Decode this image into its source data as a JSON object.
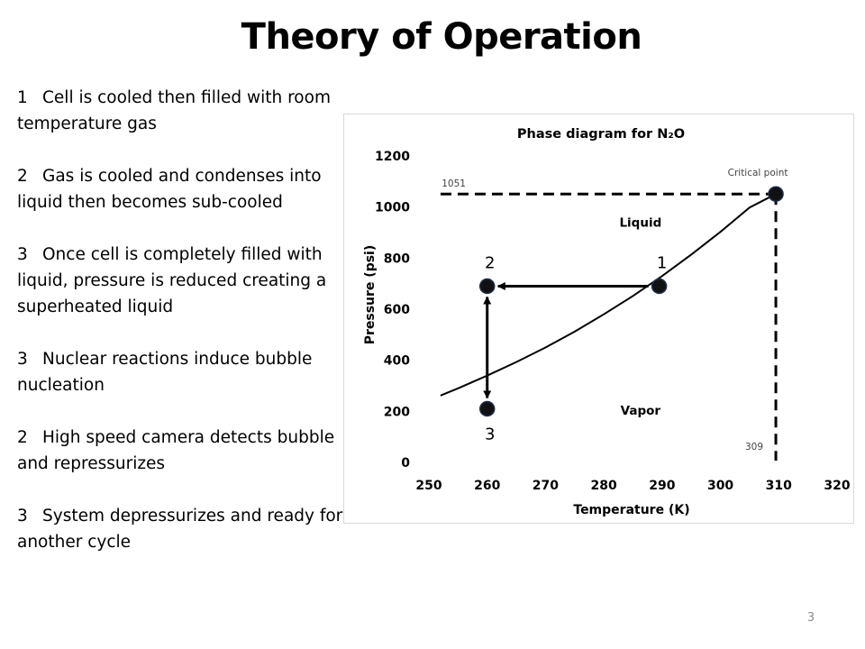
{
  "slide": {
    "title": "Theory of Operation",
    "page_number": "3",
    "steps": [
      {
        "num": "1",
        "text": "Cell is cooled then filled with room temperature gas"
      },
      {
        "num": "2",
        "text": "Gas is cooled and condenses into liquid then becomes sub-cooled"
      },
      {
        "num": "3",
        "text": "Once cell is completely filled with liquid, pressure is reduced creating   a superheated liquid"
      },
      {
        "num": "3",
        "text": "Nuclear reactions induce bubble nucleation"
      },
      {
        "num": "2",
        "text": "High speed camera detects bubble and repressurizes"
      },
      {
        "num": "3",
        "text": "System depressurizes and ready for another cycle"
      }
    ]
  },
  "chart_data": {
    "type": "line",
    "title": "Phase diagram for N₂O",
    "xlabel": "Temperature (K)",
    "ylabel": "Pressure (psi)",
    "xlim": [
      250,
      320
    ],
    "ylim": [
      0,
      1200
    ],
    "x_ticks": [
      "250",
      "260",
      "270",
      "280",
      "290",
      "300",
      "310",
      "320"
    ],
    "y_ticks": [
      "0",
      "200",
      "400",
      "600",
      "800",
      "1000",
      "1200"
    ],
    "grid": false,
    "series": [
      {
        "style": "solid",
        "x": [
          252,
          255,
          260,
          265,
          270,
          275,
          280,
          285,
          290,
          295,
          300,
          305,
          309.5
        ],
        "y": [
          262,
          290,
          340,
          393,
          450,
          512,
          580,
          652,
          730,
          814,
          903,
          998,
          1051
        ]
      }
    ],
    "critical_point": {
      "label": "Critical point",
      "x": 309.5,
      "y": 1051
    },
    "reference_lines": [
      {
        "orientation": "horizontal",
        "value": 1051,
        "label": "1051"
      },
      {
        "orientation": "vertical",
        "value": 309,
        "label": "309"
      }
    ],
    "region_labels": [
      {
        "text": "Liquid",
        "x": 290,
        "y": 940
      },
      {
        "text": "Vapor",
        "x": 290,
        "y": 205
      }
    ],
    "state_points": [
      {
        "label": "1",
        "x": 289.5,
        "y": 690
      },
      {
        "label": "2",
        "x": 260,
        "y": 690
      },
      {
        "label": "3",
        "x": 260,
        "y": 210
      }
    ],
    "arrows": [
      {
        "from": "1",
        "to": "2",
        "heads": "end"
      },
      {
        "from": "2",
        "to": "3",
        "heads": "both"
      }
    ]
  }
}
